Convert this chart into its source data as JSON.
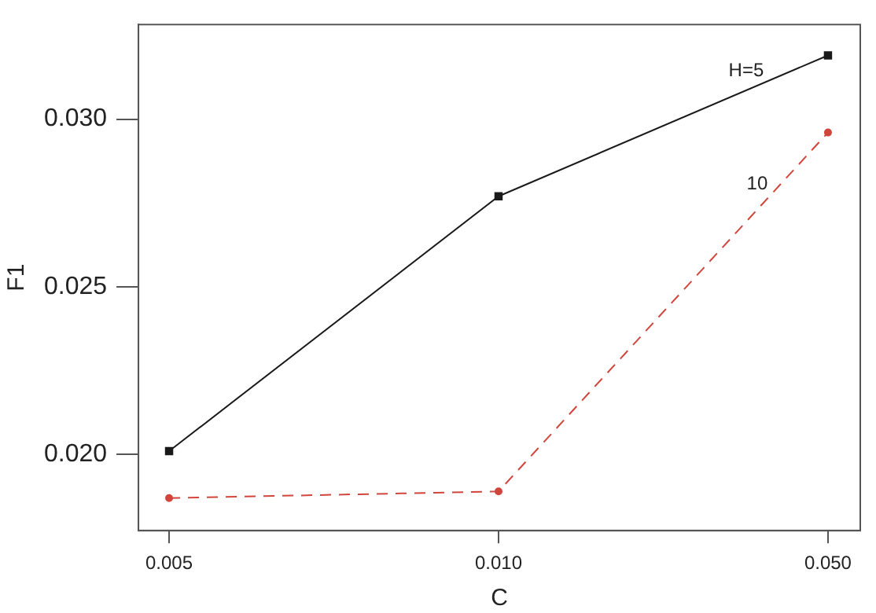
{
  "chart_data": {
    "type": "line",
    "xlabel": "C",
    "ylabel": "F1",
    "categories": [
      "0.005",
      "0.010",
      "0.050"
    ],
    "ylim": [
      0.01773,
      0.03282
    ],
    "yticks": [
      {
        "value": 0.02,
        "label": "0.020"
      },
      {
        "value": 0.025,
        "label": "0.025"
      },
      {
        "value": 0.03,
        "label": "0.030"
      }
    ],
    "grid": false,
    "legend": false,
    "series": [
      {
        "name": "H=5",
        "color": "#1a1a1a",
        "values": [
          0.0201,
          0.0277,
          0.0319
        ],
        "marker": "square",
        "line_style": "solid"
      },
      {
        "name": "10",
        "color": "#d0453c",
        "values": [
          0.0187,
          0.0189,
          0.0296
        ],
        "marker": "circle",
        "line_style": "dashed"
      }
    ]
  }
}
